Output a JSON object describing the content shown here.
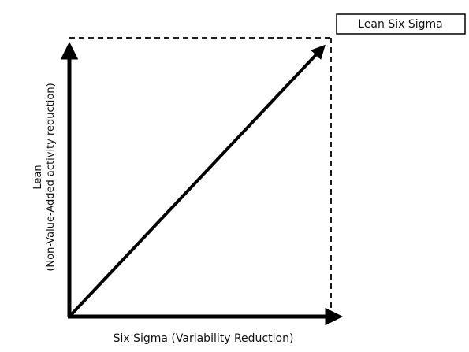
{
  "title_box": "Lean Six Sigma",
  "x_axis_label": "Six Sigma (Variability Reduction)",
  "y_axis_label": {
    "line1": "Lean",
    "line2": "(Non-Value-Added activity reduction)"
  }
}
